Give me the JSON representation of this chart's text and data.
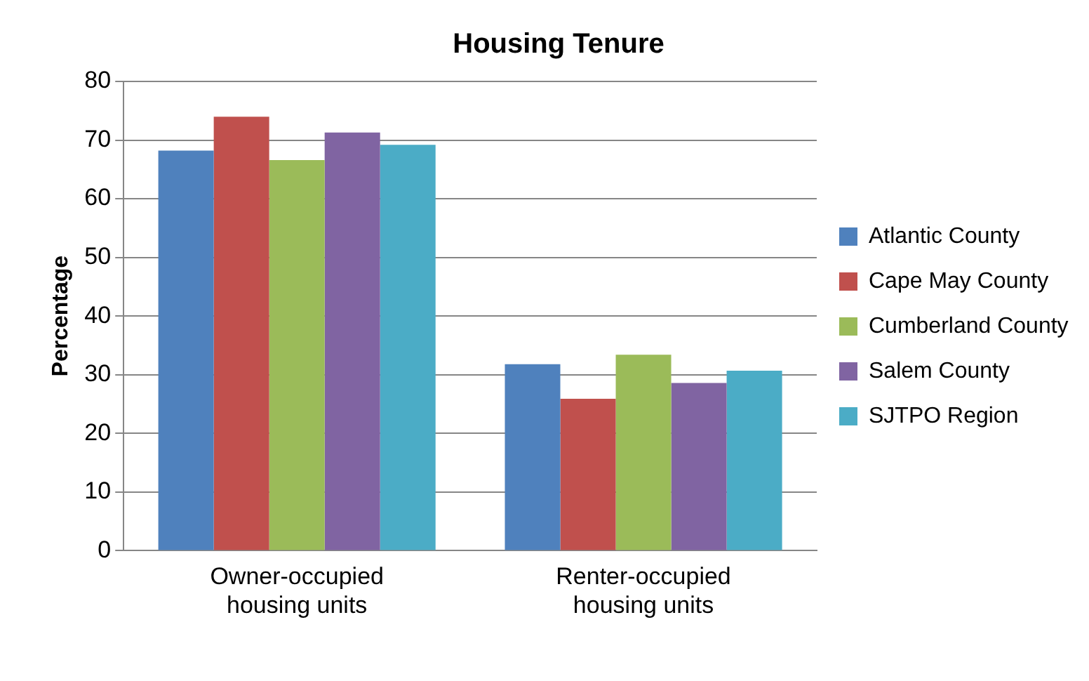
{
  "chart_data": {
    "type": "bar",
    "title": "Housing Tenure",
    "ylabel": "Percentage",
    "categories": [
      "Owner-occupied housing units",
      "Renter-occupied housing units"
    ],
    "series": [
      {
        "name": "Atlantic County",
        "color": "#4f81bd",
        "values": [
          68.2,
          31.8
        ]
      },
      {
        "name": "Cape May County",
        "color": "#c0504d",
        "values": [
          74.0,
          25.9
        ]
      },
      {
        "name": "Cumberland County",
        "color": "#9bbb59",
        "values": [
          66.6,
          33.4
        ]
      },
      {
        "name": "Salem County",
        "color": "#8064a2",
        "values": [
          71.3,
          28.6
        ]
      },
      {
        "name": "SJTPO Region",
        "color": "#4bacc6",
        "values": [
          69.2,
          30.7
        ]
      }
    ],
    "ylim": [
      0,
      80
    ],
    "yticks": [
      0,
      10,
      20,
      30,
      40,
      50,
      60,
      70,
      80
    ],
    "grid": "y",
    "legend": "right"
  }
}
